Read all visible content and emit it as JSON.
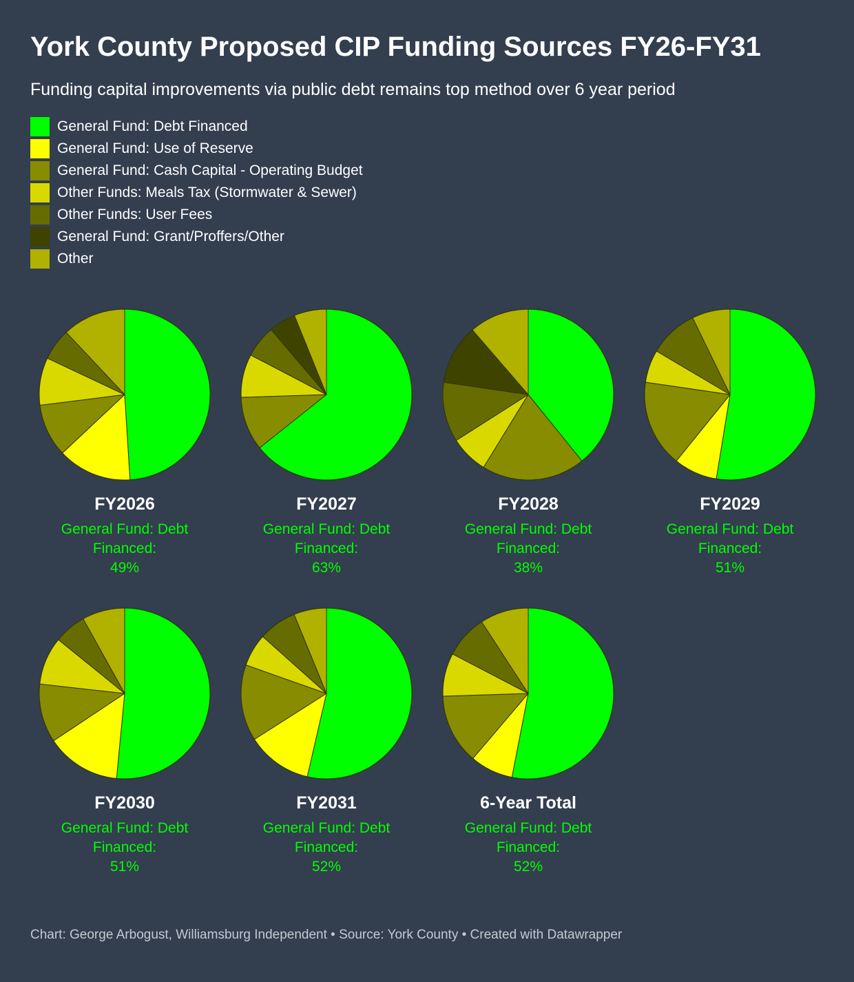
{
  "title": "York County Proposed CIP Funding Sources FY26-FY31",
  "subtitle": "Funding capital improvements via public debt remains top method over 6 year period",
  "footer": "Chart: George Arbogust, Williamsburg Independent • Source: York County • Created with Datawrapper",
  "highlight_color": "#00ff00",
  "chart_data": {
    "type": "pie",
    "series_order": [
      "General Fund: Debt Financed",
      "General Fund: Use of Reserve",
      "General Fund: Cash Capital - Operating Budget",
      "Other Funds: Meals Tax (Stormwater & Sewer)",
      "Other Funds: User Fees",
      "General Fund: Grant/Proffers/Other",
      "Other"
    ],
    "legend": [
      {
        "label": "General Fund: Debt Financed",
        "color": "#00ff00"
      },
      {
        "label": "General Fund: Use of Reserve",
        "color": "#ffff00"
      },
      {
        "label": "General Fund: Cash Capital - Operating Budget",
        "color": "#888c00"
      },
      {
        "label": "Other Funds: Meals Tax (Stormwater & Sewer)",
        "color": "#d9d900"
      },
      {
        "label": "Other Funds: User Fees",
        "color": "#676c00"
      },
      {
        "label": "General Fund: Grant/Proffers/Other",
        "color": "#3f4300"
      },
      {
        "label": "Other",
        "color": "#b1b100"
      }
    ],
    "highlight_label": "General Fund: Debt Financed:",
    "pies": [
      {
        "title": "FY2026",
        "highlight_text": "49%",
        "values": [
          49,
          14,
          10,
          9,
          6,
          0,
          12
        ]
      },
      {
        "title": "FY2027",
        "highlight_text": "63%",
        "values": [
          63,
          0,
          10,
          8,
          6,
          5,
          6
        ]
      },
      {
        "title": "FY2028",
        "highlight_text": "38%",
        "values": [
          38,
          0,
          19,
          7,
          11,
          11,
          11
        ]
      },
      {
        "title": "FY2029",
        "highlight_text": "51%",
        "values": [
          51,
          8,
          16,
          6,
          9,
          0,
          7
        ]
      },
      {
        "title": "FY2030",
        "highlight_text": "51%",
        "values": [
          51,
          14,
          11,
          9,
          6,
          0,
          8
        ]
      },
      {
        "title": "FY2031",
        "highlight_text": "52%",
        "values": [
          52,
          12,
          14,
          6,
          7,
          0,
          6
        ]
      },
      {
        "title": "6-Year Total",
        "highlight_text": "52%",
        "values": [
          52,
          8,
          13,
          8,
          8,
          0,
          9
        ]
      }
    ]
  }
}
